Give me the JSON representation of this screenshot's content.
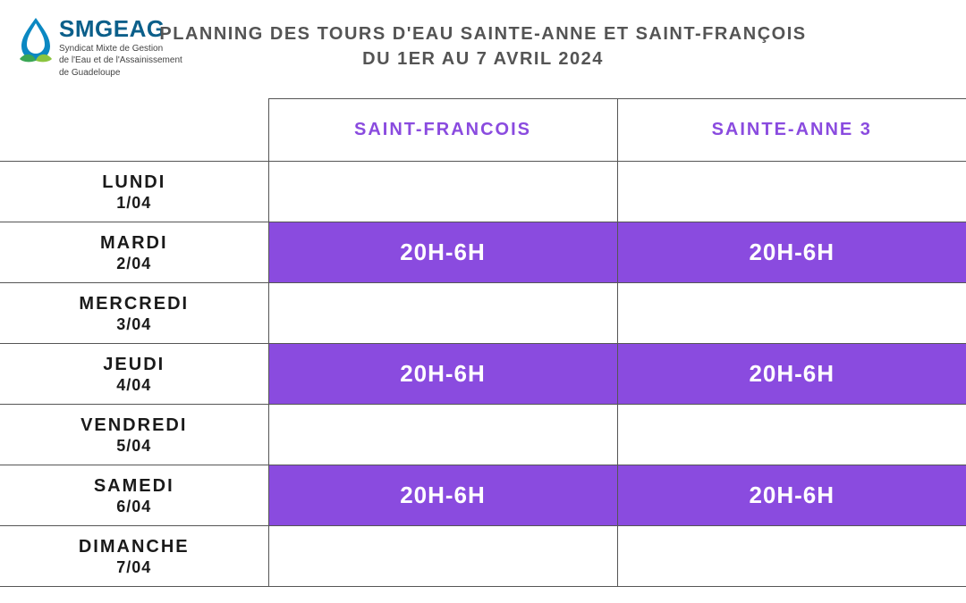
{
  "logo": {
    "name": "SMGEAG",
    "sub1": "Syndicat Mixte de Gestion",
    "sub2": "de l'Eau et de l'Assainissement",
    "sub3": "de Guadeloupe",
    "drop_color": "#0b88c2",
    "leaf1_color": "#3aa655",
    "leaf2_color": "#8bc53f"
  },
  "title": {
    "line1": "PLANNING DES TOURS D'EAU SAINTE-ANNE ET SAINT-FRANÇOIS",
    "line2": "DU 1ER AU 7 AVRIL 2024"
  },
  "colors": {
    "header_text": "#545454",
    "accent": "#8a4bdf",
    "cell_text_on_accent": "#ffffff",
    "border": "#555555",
    "day_text": "#1a1a1a",
    "background": "#ffffff"
  },
  "columns": [
    {
      "label": "SAINT-FRANCOIS"
    },
    {
      "label": "SAINTE-ANNE 3"
    }
  ],
  "rows": [
    {
      "day": "LUNDI",
      "date": "1/04",
      "cells": [
        "",
        ""
      ]
    },
    {
      "day": "MARDI",
      "date": "2/04",
      "cells": [
        "20H-6H",
        "20H-6H"
      ]
    },
    {
      "day": "MERCREDI",
      "date": "3/04",
      "cells": [
        "",
        ""
      ]
    },
    {
      "day": "JEUDI",
      "date": "4/04",
      "cells": [
        "20H-6H",
        "20H-6H"
      ]
    },
    {
      "day": "VENDREDI",
      "date": "5/04",
      "cells": [
        "",
        ""
      ]
    },
    {
      "day": "SAMEDI",
      "date": "6/04",
      "cells": [
        "20H-6H",
        "20H-6H"
      ]
    },
    {
      "day": "DIMANCHE",
      "date": "7/04",
      "cells": [
        "",
        ""
      ]
    }
  ]
}
